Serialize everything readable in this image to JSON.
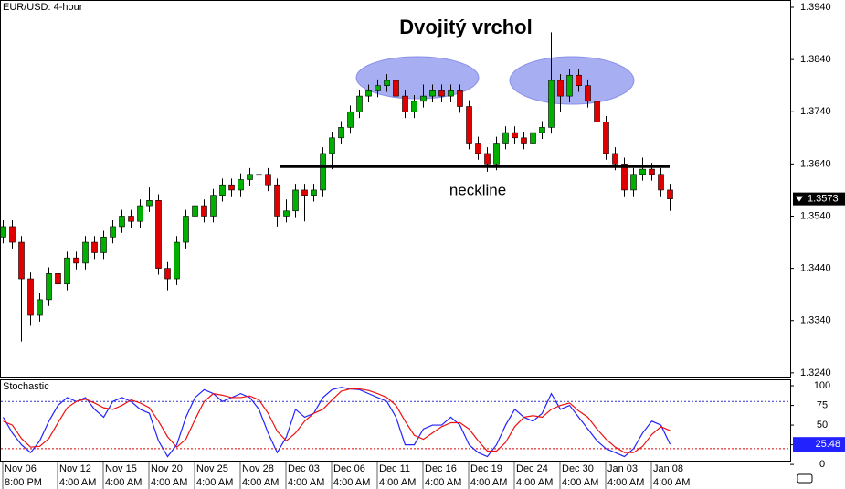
{
  "chart_data": [
    {
      "type": "candlestick",
      "title": "EUR/USD: 4-hour",
      "annotation_title": "Dvojitý vrchol",
      "neckline": {
        "text": "neckline",
        "value": 1.3635
      },
      "categories": [
        "Nov 06",
        null,
        null,
        null,
        null,
        null,
        "Nov 12",
        null,
        null,
        null,
        null,
        "Nov 15",
        null,
        null,
        null,
        null,
        "Nov 20",
        null,
        null,
        null,
        null,
        "Nov 25",
        null,
        null,
        null,
        null,
        "Nov 28",
        null,
        null,
        null,
        null,
        "Dec 03",
        null,
        null,
        null,
        null,
        "Dec 06",
        null,
        null,
        null,
        null,
        "Dec 11",
        null,
        null,
        null,
        null,
        "Dec 16",
        null,
        null,
        null,
        null,
        "Dec 19",
        null,
        null,
        null,
        null,
        "Dec 24",
        null,
        null,
        null,
        null,
        "Dec 30",
        null,
        null,
        null,
        null,
        "Jan 03",
        null,
        null,
        null,
        null,
        "Jan 08",
        null,
        null
      ],
      "times": [
        "8:00 PM",
        null,
        null,
        null,
        null,
        null,
        "4:00 AM",
        null,
        null,
        null,
        null,
        "4:00 AM",
        null,
        null,
        null,
        null,
        "4:00 AM",
        null,
        null,
        null,
        null,
        "4:00 AM",
        null,
        null,
        null,
        null,
        "4:00 AM",
        null,
        null,
        null,
        null,
        "4:00 AM",
        null,
        null,
        null,
        null,
        "4:00 AM",
        null,
        null,
        null,
        null,
        "4:00 AM",
        null,
        null,
        null,
        null,
        "4:00 AM",
        null,
        null,
        null,
        null,
        "4:00 AM",
        null,
        null,
        null,
        null,
        "4:00 AM",
        null,
        null,
        null,
        null,
        "4:00 AM",
        null,
        null,
        null,
        null,
        "4:00 AM",
        null,
        null,
        null,
        null,
        "4:00 AM",
        null,
        null
      ],
      "open": [
        1.35,
        1.352,
        1.349,
        1.342,
        1.335,
        1.338,
        1.343,
        1.341,
        1.346,
        1.345,
        1.349,
        1.347,
        1.35,
        1.352,
        1.354,
        1.353,
        1.356,
        1.357,
        1.344,
        1.342,
        1.349,
        1.354,
        1.356,
        1.354,
        1.358,
        1.36,
        1.359,
        1.361,
        1.362,
        1.362,
        1.36,
        1.354,
        1.355,
        1.359,
        1.358,
        1.359,
        1.366,
        1.369,
        1.371,
        1.374,
        1.377,
        1.378,
        1.379,
        1.38,
        1.377,
        1.374,
        1.376,
        1.377,
        1.378,
        1.377,
        1.378,
        1.375,
        1.368,
        1.366,
        1.364,
        1.368,
        1.37,
        1.369,
        1.368,
        1.37,
        1.371,
        1.38,
        1.377,
        1.381,
        1.379,
        1.376,
        1.372,
        1.366,
        1.364,
        1.359,
        1.362,
        1.363,
        1.362,
        1.359
      ],
      "high": [
        1.3532,
        1.3532,
        1.3502,
        1.3432,
        1.3392,
        1.3442,
        1.3442,
        1.3472,
        1.3472,
        1.3502,
        1.3502,
        1.3512,
        1.3532,
        1.3552,
        1.3552,
        1.3572,
        1.3595,
        1.3582,
        1.3452,
        1.3502,
        1.3552,
        1.3572,
        1.3572,
        1.3592,
        1.3612,
        1.3612,
        1.3622,
        1.3632,
        1.3632,
        1.3632,
        1.3612,
        1.3572,
        1.3602,
        1.3602,
        1.3602,
        1.3672,
        1.3702,
        1.3722,
        1.3752,
        1.3782,
        1.3792,
        1.3802,
        1.3812,
        1.3812,
        1.3782,
        1.3772,
        1.3792,
        1.3792,
        1.3792,
        1.3792,
        1.3792,
        1.3762,
        1.3692,
        1.3672,
        1.3692,
        1.3712,
        1.3712,
        1.3702,
        1.3712,
        1.3722,
        1.3892,
        1.3812,
        1.3822,
        1.3822,
        1.3802,
        1.3772,
        1.3732,
        1.3672,
        1.3652,
        1.3632,
        1.3652,
        1.3642,
        1.3632,
        1.3602
      ],
      "low": [
        1.3488,
        1.3478,
        1.33,
        1.333,
        1.3338,
        1.3368,
        1.3398,
        1.3398,
        1.3438,
        1.3438,
        1.3458,
        1.3458,
        1.3488,
        1.3508,
        1.3518,
        1.3518,
        1.3548,
        1.3428,
        1.3398,
        1.3408,
        1.3478,
        1.3528,
        1.3528,
        1.3528,
        1.3568,
        1.3578,
        1.3578,
        1.3598,
        1.3608,
        1.3588,
        1.352,
        1.3528,
        1.3538,
        1.353,
        1.3568,
        1.3578,
        1.363,
        1.3678,
        1.3698,
        1.3728,
        1.3758,
        1.3768,
        1.3778,
        1.3758,
        1.3728,
        1.3728,
        1.3748,
        1.3758,
        1.3758,
        1.3758,
        1.3738,
        1.3668,
        1.3648,
        1.3625,
        1.3628,
        1.3668,
        1.3678,
        1.3668,
        1.3668,
        1.3688,
        1.3698,
        1.374,
        1.3758,
        1.3778,
        1.3748,
        1.3708,
        1.3648,
        1.3628,
        1.3578,
        1.3578,
        1.3608,
        1.3608,
        1.3578,
        1.355
      ],
      "close": [
        1.352,
        1.349,
        1.342,
        1.335,
        1.338,
        1.343,
        1.341,
        1.346,
        1.345,
        1.349,
        1.347,
        1.35,
        1.352,
        1.354,
        1.353,
        1.356,
        1.357,
        1.344,
        1.342,
        1.349,
        1.354,
        1.356,
        1.354,
        1.358,
        1.36,
        1.359,
        1.361,
        1.362,
        1.362,
        1.36,
        1.354,
        1.355,
        1.359,
        1.358,
        1.359,
        1.366,
        1.369,
        1.371,
        1.374,
        1.377,
        1.378,
        1.379,
        1.38,
        1.377,
        1.374,
        1.376,
        1.377,
        1.378,
        1.377,
        1.378,
        1.375,
        1.368,
        1.366,
        1.364,
        1.368,
        1.37,
        1.369,
        1.368,
        1.37,
        1.371,
        1.38,
        1.377,
        1.381,
        1.379,
        1.376,
        1.372,
        1.366,
        1.364,
        1.359,
        1.362,
        1.363,
        1.362,
        1.359,
        1.3573
      ],
      "color_up": "#00b000",
      "color_down": "#e00000",
      "ylim": [
        1.3231,
        1.3954
      ],
      "yticks": [
        {
          "value": 1.394,
          "label": "1.3940"
        },
        {
          "value": 1.384,
          "label": "1.3840"
        },
        {
          "value": 1.374,
          "label": "1.3740"
        },
        {
          "value": 1.364,
          "label": "1.3640"
        },
        {
          "value": 1.354,
          "label": "1.3540"
        },
        {
          "value": 1.344,
          "label": "1.3440"
        },
        {
          "value": 1.334,
          "label": "1.3340"
        },
        {
          "value": 1.324,
          "label": "1.3240"
        }
      ]
    },
    {
      "type": "line",
      "title": "Stochastic",
      "ylim": [
        -8,
        107
      ],
      "yticks": [
        100,
        75,
        50,
        25,
        0
      ],
      "levels": [
        {
          "value": 80,
          "color": "#3333cc"
        },
        {
          "value": 20,
          "color": "#dd0000"
        }
      ],
      "series": [
        {
          "color": "#2222ff",
          "values": [
            60,
            40,
            25,
            15,
            30,
            55,
            75,
            85,
            80,
            85,
            70,
            60,
            80,
            85,
            80,
            70,
            65,
            30,
            10,
            25,
            60,
            85,
            95,
            90,
            80,
            85,
            90,
            85,
            70,
            40,
            15,
            35,
            70,
            60,
            65,
            85,
            95,
            98,
            96,
            95,
            90,
            85,
            80,
            60,
            25,
            25,
            45,
            50,
            50,
            60,
            50,
            25,
            15,
            10,
            25,
            50,
            70,
            60,
            55,
            65,
            90,
            70,
            75,
            60,
            45,
            30,
            20,
            15,
            10,
            20,
            40,
            55,
            50,
            25.48
          ]
        },
        {
          "color": "#ee1111",
          "values": [
            55,
            50,
            33,
            22,
            23,
            33,
            53,
            72,
            80,
            83,
            78,
            72,
            70,
            75,
            82,
            78,
            72,
            55,
            35,
            22,
            32,
            57,
            80,
            90,
            88,
            85,
            85,
            87,
            82,
            65,
            42,
            30,
            40,
            55,
            65,
            70,
            82,
            93,
            96,
            96,
            94,
            90,
            85,
            75,
            55,
            37,
            32,
            40,
            48,
            53,
            53,
            45,
            30,
            17,
            17,
            28,
            48,
            60,
            62,
            60,
            70,
            75,
            78,
            68,
            60,
            45,
            32,
            22,
            15,
            15,
            23,
            38,
            48,
            43
          ]
        }
      ]
    }
  ]
}
